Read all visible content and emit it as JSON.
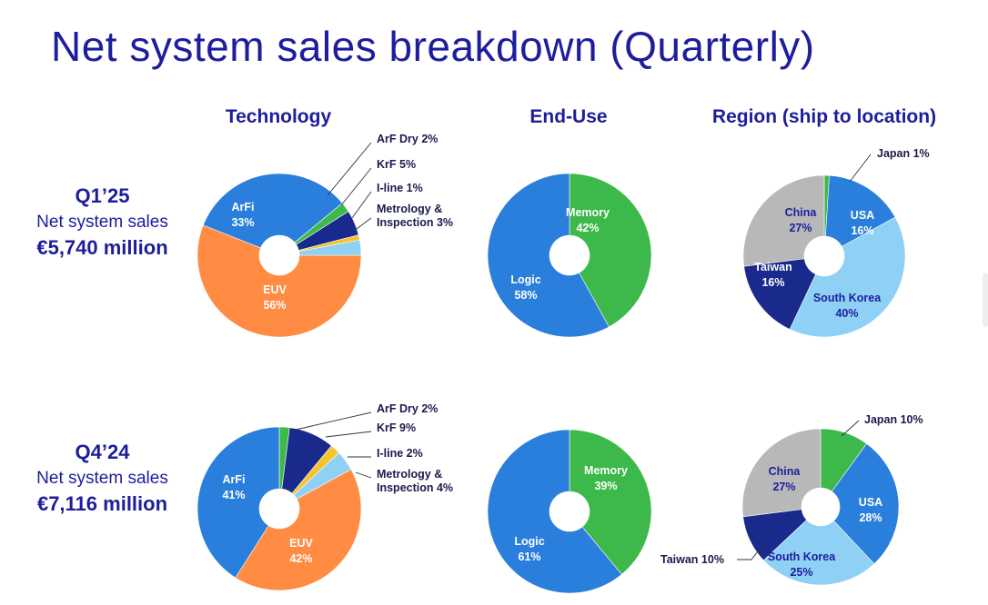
{
  "title": "Net system sales breakdown (Quarterly)",
  "headers": {
    "technology": "Technology",
    "enduse": "End-Use",
    "region": "Region (ship to location)"
  },
  "quarters": [
    {
      "quarter": "Q1’25",
      "label": "Net system sales",
      "amount": "€5,740 million"
    },
    {
      "quarter": "Q4’24",
      "label": "Net system sales",
      "amount": "€7,116 million"
    }
  ],
  "colors": {
    "dark_blue": "#1d1d9e",
    "label_dark": "#1a1a4e"
  },
  "chart_data": [
    {
      "type": "pie",
      "group": "Technology",
      "quarter": "Q1’25",
      "slices": [
        {
          "name": "EUV",
          "value": 56,
          "display": "EUV 56%",
          "color": "#ff8c42"
        },
        {
          "name": "ArFi",
          "value": 33,
          "display": "ArFi 33%",
          "color": "#2b7fdc"
        },
        {
          "name": "ArF Dry",
          "value": 2,
          "display": "ArF Dry 2%",
          "color": "#3db84a"
        },
        {
          "name": "KrF",
          "value": 5,
          "display": "KrF 5%",
          "color": "#1a2a8c"
        },
        {
          "name": "I-line",
          "value": 1,
          "display": "I-line 1%",
          "color": "#f4c430"
        },
        {
          "name": "Metrology & Inspection",
          "value": 3,
          "display": "Metrology & Inspection 3%",
          "color": "#8fd0f5"
        }
      ]
    },
    {
      "type": "pie",
      "group": "End-Use",
      "quarter": "Q1’25",
      "slices": [
        {
          "name": "Memory",
          "value": 42,
          "display": "Memory 42%",
          "color": "#3db84a"
        },
        {
          "name": "Logic",
          "value": 58,
          "display": "Logic 58%",
          "color": "#2b7fdc"
        }
      ]
    },
    {
      "type": "pie",
      "group": "Region (ship to location)",
      "quarter": "Q1’25",
      "slices": [
        {
          "name": "Japan",
          "value": 1,
          "display": "Japan 1%",
          "color": "#3db84a"
        },
        {
          "name": "USA",
          "value": 16,
          "display": "USA 16%",
          "color": "#2b7fdc"
        },
        {
          "name": "South Korea",
          "value": 40,
          "display": "South Korea 40%",
          "color": "#8fd0f5"
        },
        {
          "name": "Taiwan",
          "value": 16,
          "display": "Taiwan 16%",
          "color": "#1a2a8c"
        },
        {
          "name": "China",
          "value": 27,
          "display": "China 27%",
          "color": "#b8b8b8"
        }
      ]
    },
    {
      "type": "pie",
      "group": "Technology",
      "quarter": "Q4’24",
      "slices": [
        {
          "name": "EUV",
          "value": 42,
          "display": "EUV 42%",
          "color": "#ff8c42"
        },
        {
          "name": "ArFi",
          "value": 41,
          "display": "ArFi 41%",
          "color": "#2b7fdc"
        },
        {
          "name": "ArF Dry",
          "value": 2,
          "display": "ArF Dry 2%",
          "color": "#3db84a"
        },
        {
          "name": "KrF",
          "value": 9,
          "display": "KrF 9%",
          "color": "#1a2a8c"
        },
        {
          "name": "I-line",
          "value": 2,
          "display": "I-line 2%",
          "color": "#f4c430"
        },
        {
          "name": "Metrology & Inspection",
          "value": 4,
          "display": "Metrology & Inspection 4%",
          "color": "#8fd0f5"
        }
      ]
    },
    {
      "type": "pie",
      "group": "End-Use",
      "quarter": "Q4’24",
      "slices": [
        {
          "name": "Memory",
          "value": 39,
          "display": "Memory 39%",
          "color": "#3db84a"
        },
        {
          "name": "Logic",
          "value": 61,
          "display": "Logic 61%",
          "color": "#2b7fdc"
        }
      ]
    },
    {
      "type": "pie",
      "group": "Region (ship to location)",
      "quarter": "Q4’24",
      "slices": [
        {
          "name": "Japan",
          "value": 10,
          "display": "Japan 10%",
          "color": "#3db84a"
        },
        {
          "name": "USA",
          "value": 28,
          "display": "USA 28%",
          "color": "#2b7fdc"
        },
        {
          "name": "South Korea",
          "value": 25,
          "display": "South Korea 25%",
          "color": "#8fd0f5"
        },
        {
          "name": "Taiwan",
          "value": 10,
          "display": "Taiwan 10%",
          "color": "#1a2a8c"
        },
        {
          "name": "China",
          "value": 27,
          "display": "China 27%",
          "color": "#b8b8b8"
        }
      ]
    }
  ]
}
